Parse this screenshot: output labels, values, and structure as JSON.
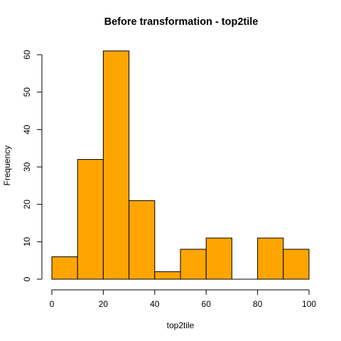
{
  "chart_data": {
    "type": "bar",
    "title": "Before transformation -  top2tile",
    "xlabel": "top2tile",
    "ylabel": "Frequency",
    "bin_edges": [
      0,
      10,
      20,
      30,
      40,
      50,
      60,
      70,
      80,
      90,
      100
    ],
    "values": [
      6,
      32,
      61,
      21,
      2,
      8,
      11,
      0,
      11,
      8
    ],
    "xlim": [
      0,
      100
    ],
    "ylim": [
      0,
      60
    ],
    "x_ticks": [
      0,
      20,
      40,
      60,
      80,
      100
    ],
    "y_ticks": [
      0,
      10,
      20,
      30,
      40,
      50,
      60
    ],
    "bar_color": "#FFA500",
    "grid": false
  }
}
